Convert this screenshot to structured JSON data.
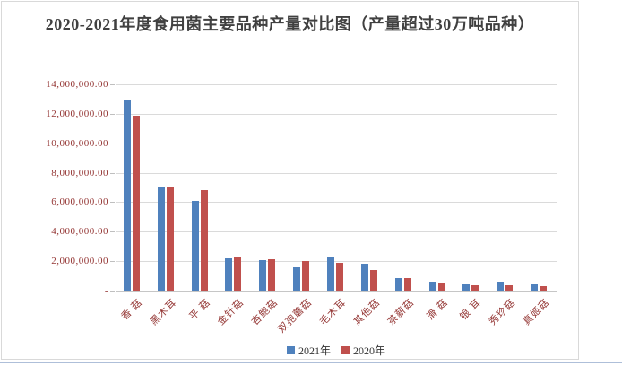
{
  "title": "2020-2021年度食用菌主要品种产量对比图（产量超过30万吨品种）",
  "chart_data": {
    "type": "bar",
    "title": "2020-2021年度食用菌主要品种产量对比图（产量超过30万吨品种）",
    "categories": [
      "香 菇",
      "黑木耳",
      "平 菇",
      "金针菇",
      "杏鲍菇",
      "双孢蘑菇",
      "毛木耳",
      "其他菇",
      "茶薪菇",
      "滑 菇",
      "银 耳",
      "秀珍菇",
      "真姬菇"
    ],
    "series": [
      {
        "name": "2021年",
        "color": "#4F81BD",
        "values": [
          12960000,
          7070000,
          6080000,
          2170000,
          2050000,
          1610000,
          2260000,
          1850000,
          850000,
          620000,
          430000,
          600000,
          420000
        ]
      },
      {
        "name": "2020年",
        "color": "#C0504D",
        "values": [
          11880000,
          7060000,
          6830000,
          2280000,
          2140000,
          2000000,
          1870000,
          1420000,
          870000,
          570000,
          390000,
          360000,
          280000
        ]
      }
    ],
    "ylim": [
      0,
      14000000
    ],
    "y_tick_step": 2000000,
    "y_tick_labels": [
      "14,000,000.00",
      "12,000,000.00",
      "10,000,000.00",
      "8,000,000.00",
      "6,000,000.00",
      "4,000,000.00",
      "2,000,000.00",
      "-"
    ],
    "xlabel": "",
    "ylabel": "",
    "grid": true,
    "legend_position": "bottom",
    "x_label_rotation_deg": 45
  },
  "colors": {
    "axis_text": "#943634",
    "title_text": "#404040",
    "gridline": "#DADADA",
    "chart_border": "#D9D9D9",
    "series_2021": "#4F81BD",
    "series_2020": "#C0504D",
    "page_divider": "#AEBFD9",
    "background": "#FFFFFF"
  }
}
